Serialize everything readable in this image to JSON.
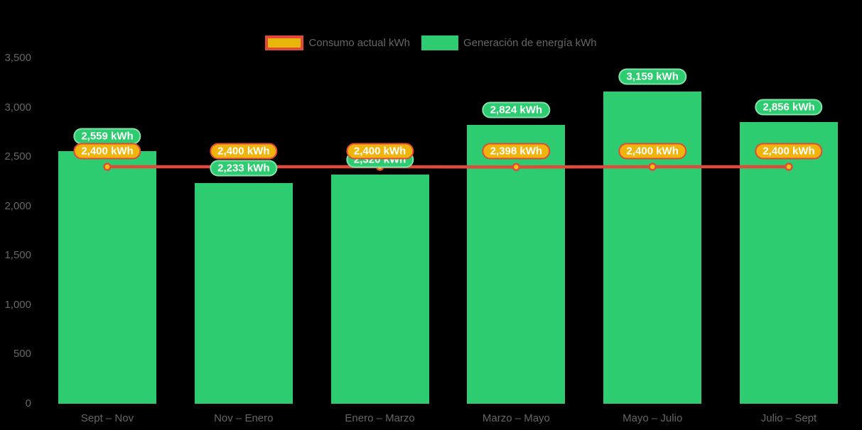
{
  "chart_data": {
    "type": "bar",
    "title": "",
    "categories": [
      "Sept – Nov",
      "Nov – Enero",
      "Enero – Marzo",
      "Marzo – Mayo",
      "Mayo – Julio",
      "Julio – Sept"
    ],
    "series": [
      {
        "name": "Consumo actual kWh",
        "type": "line",
        "line_color": "#e2493a",
        "point_fill": "#f1c40f",
        "values": [
          2400,
          2400,
          2400,
          2398,
          2400,
          2400
        ],
        "labels": [
          "2,400 kWh",
          "2,400 kWh",
          "2,400 kWh",
          "2,398 kWh",
          "2,400 kWh",
          "2,400 kWh"
        ]
      },
      {
        "name": "Generación de energía kWh",
        "type": "bar",
        "bar_color": "#2ecc71",
        "values": [
          2559,
          2233,
          2320,
          2824,
          3159,
          2856
        ],
        "labels": [
          "2,559 kWh",
          "2,233 kWh",
          "2,320 kWh",
          "2,824 kWh",
          "3,159 kWh",
          "2,856 kWh"
        ]
      }
    ],
    "ylim": [
      0,
      3500
    ],
    "yticks": [
      {
        "value": 0,
        "label": "0"
      },
      {
        "value": 500,
        "label": "500"
      },
      {
        "value": 1000,
        "label": "1,000"
      },
      {
        "value": 1500,
        "label": "1,500"
      },
      {
        "value": 2000,
        "label": "2,000"
      },
      {
        "value": 2500,
        "label": "2,500"
      },
      {
        "value": 3000,
        "label": "3,000"
      },
      {
        "value": 3500,
        "label": "3,500"
      }
    ],
    "grid": false,
    "legend_position": "top-center",
    "background": "#000000",
    "axis_text_color": "#666666",
    "value_label_text_color": "#ffffff"
  }
}
